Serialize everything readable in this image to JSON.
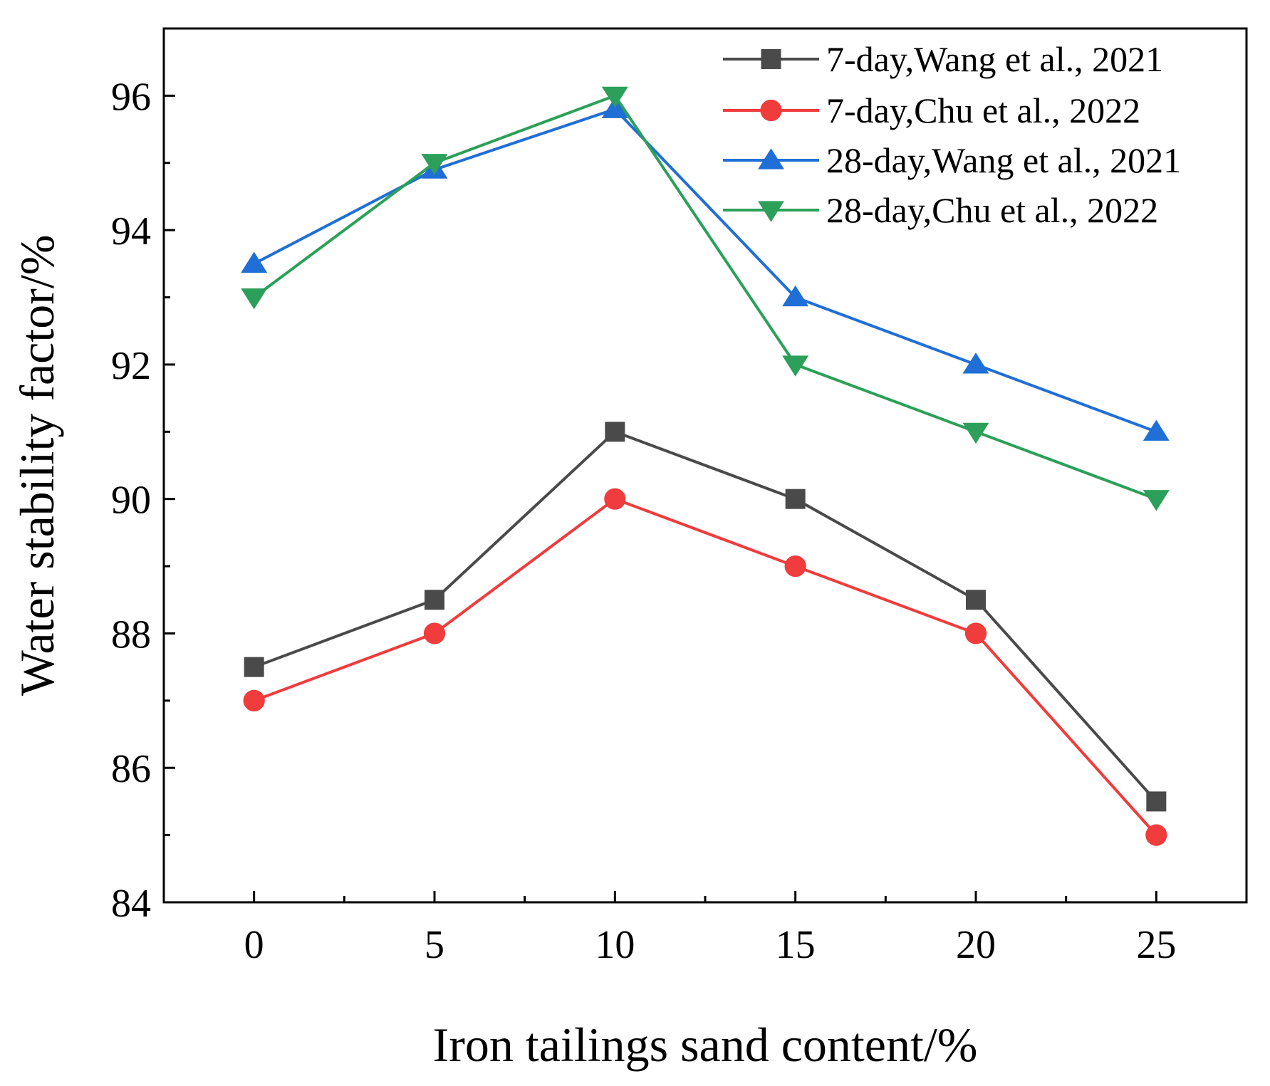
{
  "chart_data": {
    "type": "line",
    "title": "",
    "xlabel": "Iron tailings sand content/%",
    "ylabel": "Water stability factor/%",
    "x": [
      0,
      5,
      10,
      15,
      20,
      25
    ],
    "x_ticks": [
      "0",
      "5",
      "10",
      "15",
      "20",
      "25"
    ],
    "y_ticks": [
      "84",
      "86",
      "88",
      "90",
      "92",
      "94",
      "96"
    ],
    "xlim": [
      -2.5,
      27.5
    ],
    "ylim": [
      84,
      97
    ],
    "grid": false,
    "legend_position": "top-right",
    "series": [
      {
        "name": "7-day,Wang et al., 2021",
        "color": "#4a4a4a",
        "marker": "square",
        "values": [
          87.5,
          88.5,
          91.0,
          90.0,
          88.5,
          85.5
        ]
      },
      {
        "name": "7-day,Chu et al., 2022",
        "color": "#f03c3c",
        "marker": "circle",
        "values": [
          87.0,
          88.0,
          90.0,
          89.0,
          88.0,
          85.0
        ]
      },
      {
        "name": "28-day,Wang et al., 2021",
        "color": "#1f6fd6",
        "marker": "triangle-up",
        "values": [
          93.5,
          94.9,
          95.8,
          93.0,
          92.0,
          91.0
        ]
      },
      {
        "name": "28-day,Chu et al., 2022",
        "color": "#2ca05a",
        "marker": "triangle-down",
        "values": [
          93.0,
          95.0,
          96.0,
          92.0,
          91.0,
          90.0
        ]
      }
    ]
  }
}
